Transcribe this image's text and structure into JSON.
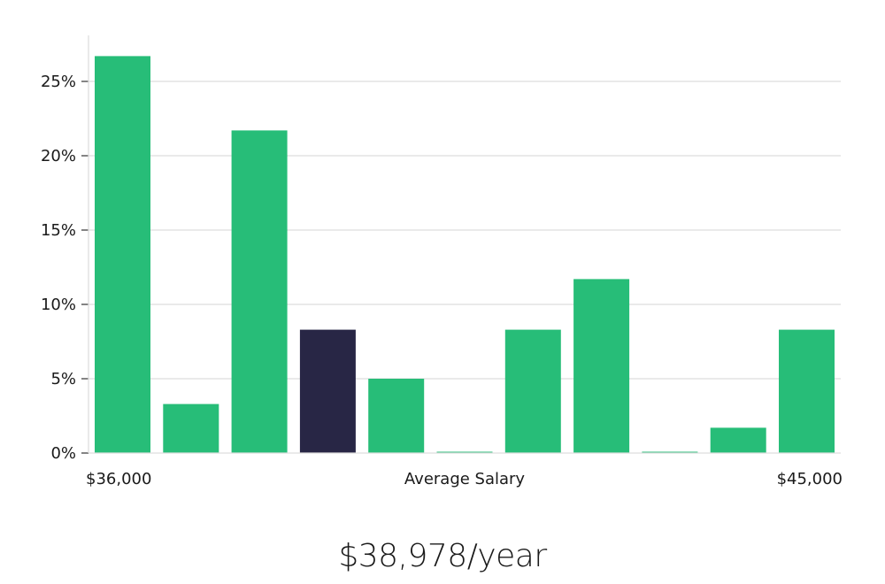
{
  "chart_data": {
    "type": "bar",
    "title": "",
    "xlabel": "Average Salary",
    "ylabel": "",
    "x_start_label": "$36,000",
    "x_end_label": "$45,000",
    "ylim": [
      0,
      28
    ],
    "yticks": [
      0,
      5,
      10,
      15,
      20,
      25
    ],
    "ytick_labels": [
      "0%",
      "5%",
      "10%",
      "15%",
      "20%",
      "25%"
    ],
    "grid": true,
    "values": [
      26.7,
      3.3,
      21.7,
      8.3,
      5.0,
      0,
      8.3,
      11.7,
      0,
      1.7,
      8.3
    ],
    "highlight_index": 3,
    "colors": {
      "bar": "#27bd78",
      "highlight": "#282645",
      "grid": "#e3e3e3",
      "axis": "#dddddd"
    }
  },
  "summary": {
    "average_label": "$38,978/year"
  }
}
